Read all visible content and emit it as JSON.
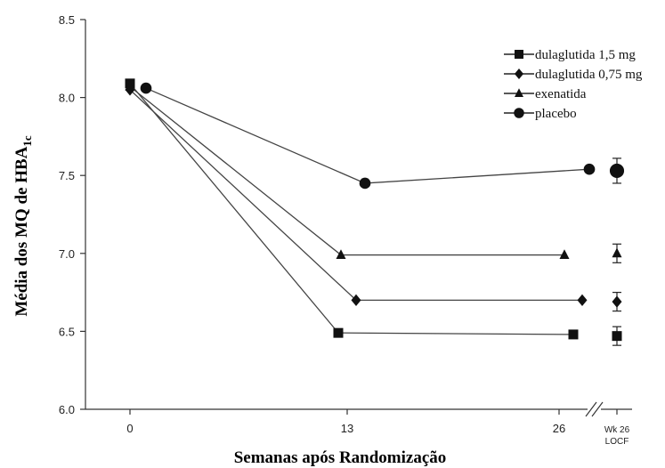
{
  "chart_data": {
    "type": "line",
    "xlabel": "Semanas após Randomização",
    "ylabel": "Média dos MQ de HBA",
    "ylabel_sub": "1c",
    "ylim": [
      6.0,
      8.5
    ],
    "yticks": [
      6.0,
      6.5,
      7.0,
      7.5,
      8.0,
      8.5
    ],
    "ytick_labels": [
      "6.0",
      "6.5",
      "7.0",
      "7.5",
      "8.0",
      "8.5"
    ],
    "xticks": [
      0,
      13,
      26
    ],
    "xtick_labels": [
      "0",
      "13",
      "26"
    ],
    "extra_tick_label": [
      "Wk 26",
      "LOCF"
    ],
    "series": [
      {
        "name": "dulaglutida 1,5 mg",
        "marker": "square",
        "x": [
          0,
          13,
          26
        ],
        "y": [
          8.09,
          6.49,
          6.48
        ],
        "locf": 6.47,
        "locf_err": 0.06
      },
      {
        "name": "dulaglutida 0,75 mg",
        "marker": "diamond",
        "x": [
          0,
          13,
          26
        ],
        "y": [
          8.05,
          6.7,
          6.7
        ],
        "locf": 6.69,
        "locf_err": 0.06
      },
      {
        "name": "exenatida",
        "marker": "triangle",
        "x": [
          0,
          13,
          26
        ],
        "y": [
          8.07,
          6.99,
          6.99
        ],
        "locf": 7.0,
        "locf_err": 0.06
      },
      {
        "name": "placebo",
        "marker": "circle",
        "x": [
          0,
          13,
          26
        ],
        "y": [
          8.06,
          7.45,
          7.54
        ],
        "locf": 7.53,
        "locf_err": 0.08
      }
    ],
    "legend_position": "top-right",
    "grid": false
  }
}
